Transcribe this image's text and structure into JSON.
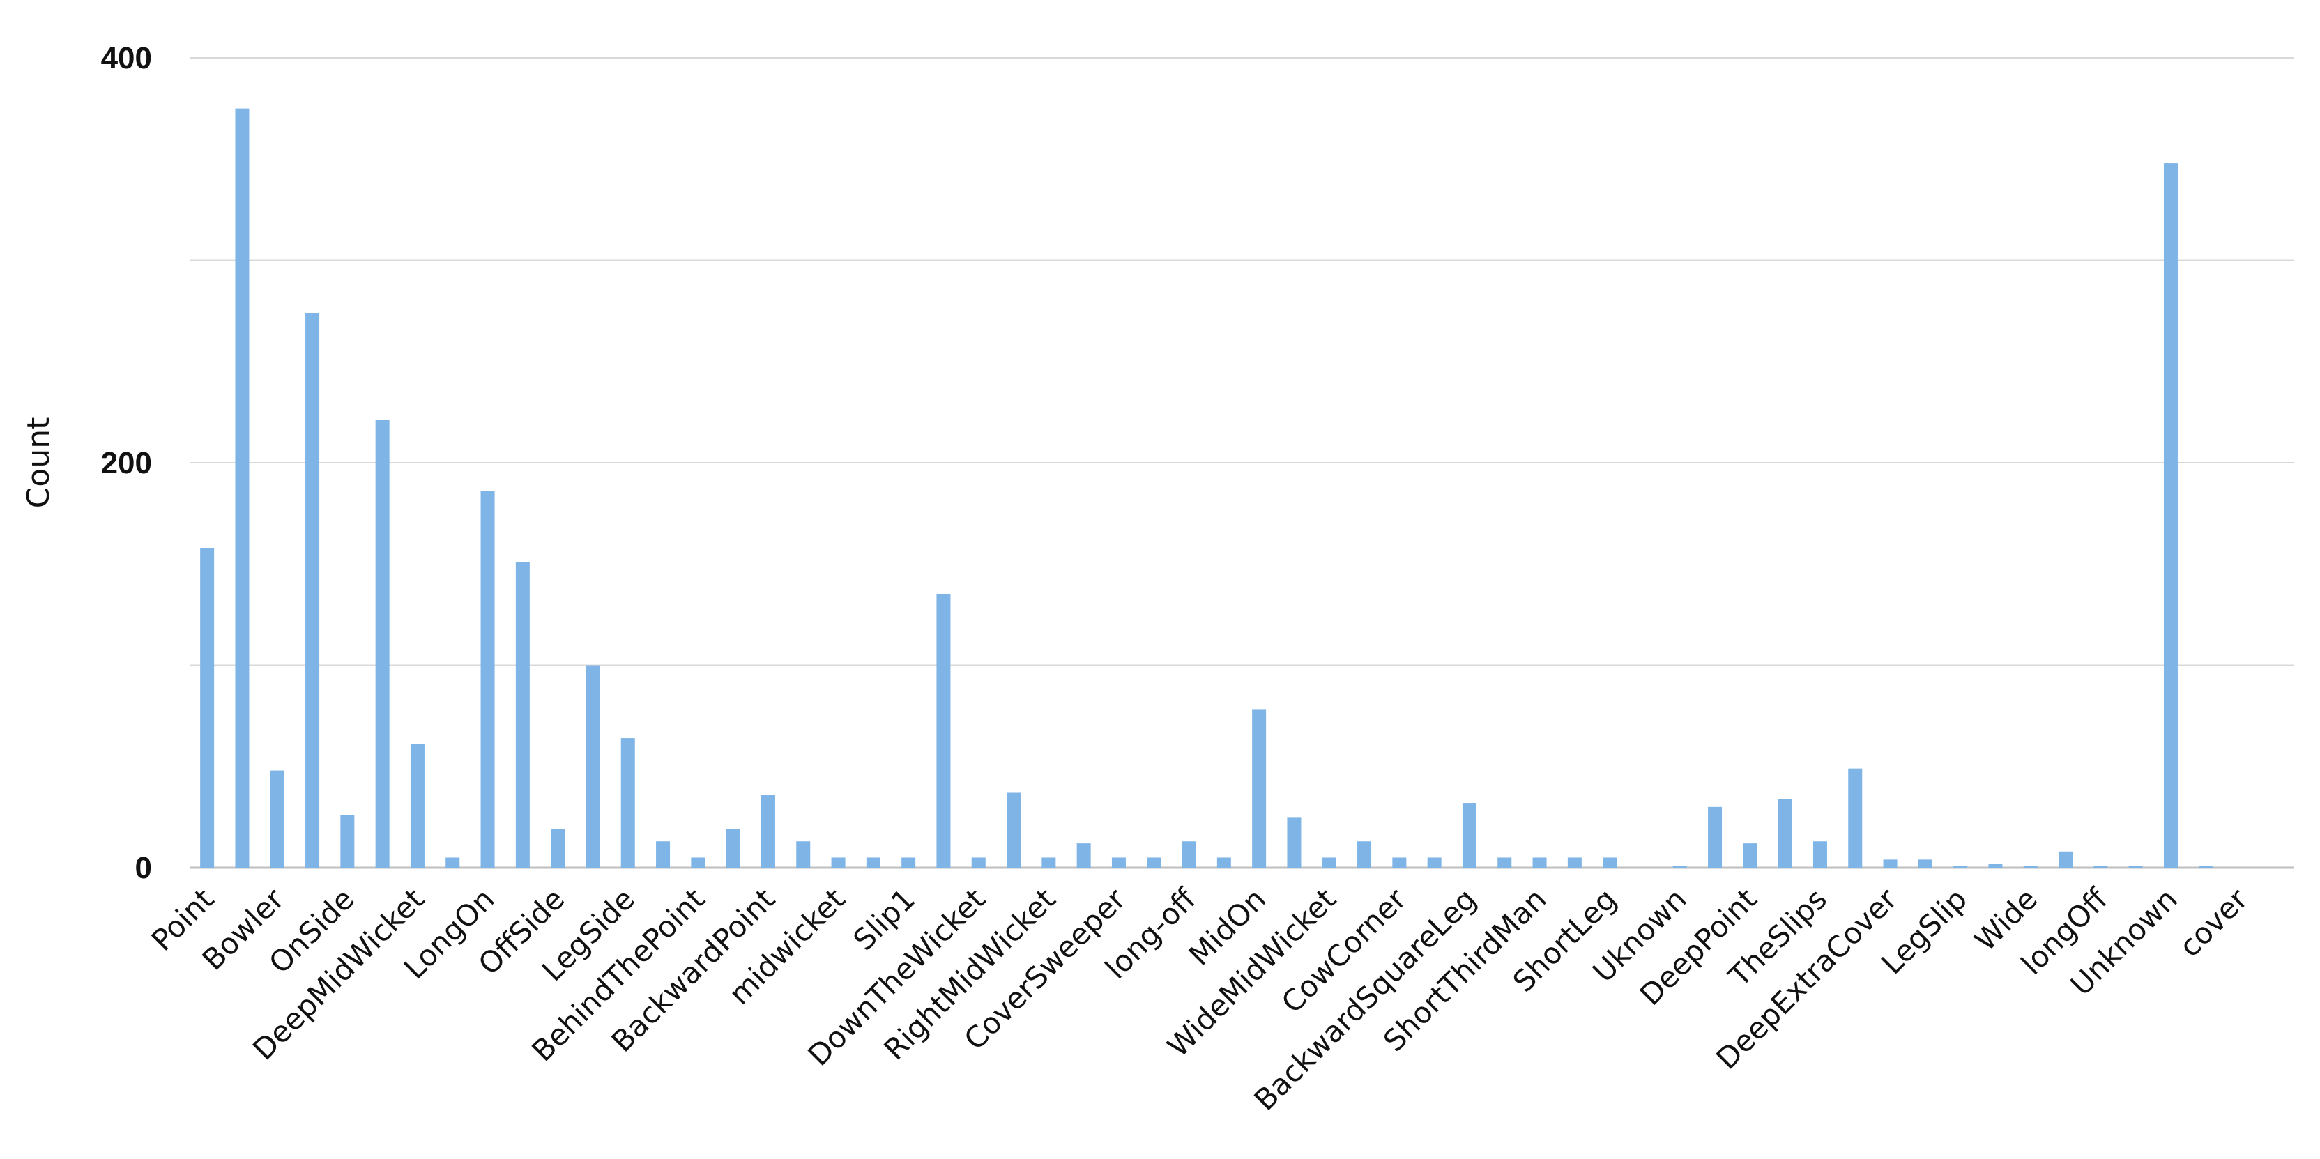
{
  "colors": {
    "bar": "#7eb4e6",
    "grid": "#d9d9d9",
    "text": "#111111"
  },
  "chart_data": {
    "type": "bar",
    "title": "",
    "xlabel": "",
    "ylabel": "Count",
    "ylim": [
      0,
      400
    ],
    "yticks": [
      0,
      200,
      400
    ],
    "grid": true,
    "legend": "none",
    "categories": [
      "Point",
      "",
      "Bowler",
      "",
      "OnSide",
      "",
      "DeepMidWicket",
      "",
      "LongOn",
      "",
      "OffSide",
      "",
      "LegSide",
      "",
      "BehindThePoint",
      "",
      "BackwardPoint",
      "",
      "midwicket",
      "",
      "Slip1",
      "",
      "DownTheWicket",
      "",
      "RightMidWicket",
      "",
      "CoverSweeper",
      "",
      "long-off",
      "",
      "MidOn",
      "",
      "WideMidWicket",
      "",
      "CowCorner",
      "",
      "BackwardSquareLeg",
      "",
      "ShortThirdMan",
      "",
      "ShortLeg",
      "",
      "Uknown",
      "",
      "DeepPoint",
      "",
      "TheSlips",
      "",
      "DeepExtraCover",
      "",
      "LegSlip",
      "",
      "Wide",
      "",
      "longOff",
      "",
      "Unknown",
      "",
      "cover",
      ""
    ],
    "values": [
      158,
      375,
      48,
      274,
      26,
      221,
      61,
      5,
      186,
      151,
      19,
      100,
      64,
      13,
      5,
      19,
      36,
      13,
      5,
      5,
      5,
      135,
      5,
      37,
      5,
      12,
      5,
      5,
      13,
      5,
      78,
      25,
      5,
      13,
      5,
      5,
      32,
      5,
      5,
      5,
      5,
      0,
      1,
      30,
      12,
      34,
      13,
      49,
      4,
      4,
      1,
      2,
      1,
      8,
      1,
      1,
      348,
      1,
      0,
      0
    ]
  }
}
